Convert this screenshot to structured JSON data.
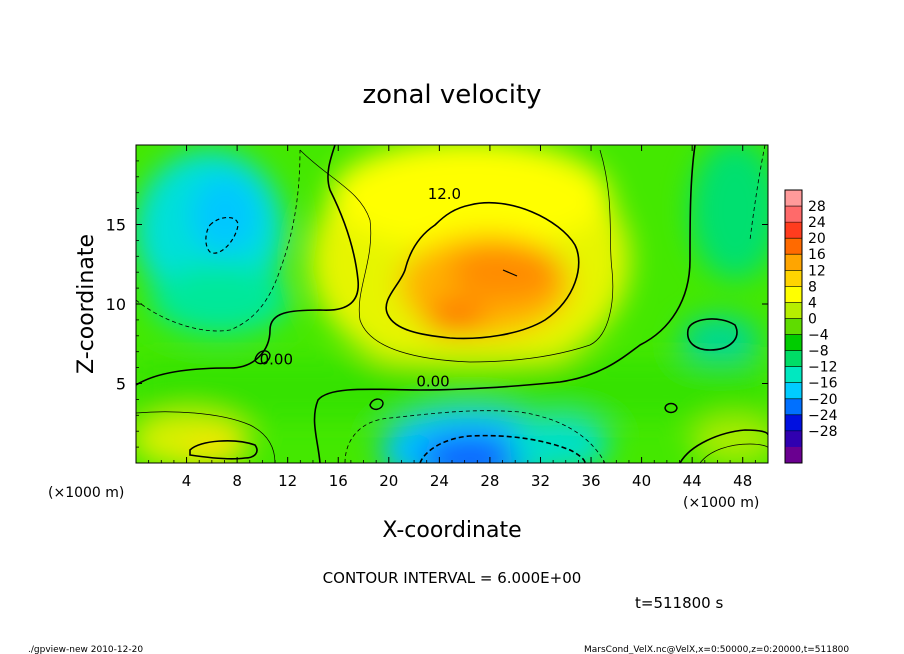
{
  "chart_data": {
    "type": "heatmap",
    "title": "zonal velocity",
    "xlabel": "X-coordinate",
    "ylabel": "Z-coordinate",
    "x_unit": "(×1000 m)",
    "y_unit": "(×1000 m)",
    "xlim": [
      0,
      50
    ],
    "ylim": [
      0,
      20
    ],
    "x_ticks": [
      "4",
      "8",
      "12",
      "16",
      "20",
      "24",
      "28",
      "32",
      "36",
      "40",
      "44",
      "48"
    ],
    "y_ticks": [
      "5",
      "10",
      "15"
    ],
    "colorbar_levels": [
      "28",
      "24",
      "20",
      "16",
      "12",
      "8",
      "4",
      "0",
      "−4",
      "−8",
      "−12",
      "−16",
      "−20",
      "−24",
      "−28"
    ],
    "colorbar_colors": [
      "#ff9a9a",
      "#ff6a6a",
      "#ff3c1e",
      "#ff6a00",
      "#ffa500",
      "#ffd400",
      "#ffff00",
      "#b6ee00",
      "#5fdc00",
      "#00cc00",
      "#00dd66",
      "#00e8c0",
      "#00ccff",
      "#0070ff",
      "#0010e0",
      "#3000b0",
      "#6a0090"
    ],
    "contour_labels": [
      {
        "text": "12.0",
        "x": 24.4,
        "y": 16.6
      },
      {
        "text": "0.00",
        "x": 11.1,
        "y": 6.2
      },
      {
        "text": "0.00",
        "x": 23.5,
        "y": 4.8
      }
    ],
    "annotation_interval": "CONTOUR INTERVAL = 6.000E+00",
    "annotation_time": "t=511800 s"
  },
  "footer": {
    "left": "./gpview-new   2010-12-20",
    "right": "MarsCond_VelX.nc@VelX,x=0:50000,z=0:20000,t=511800"
  }
}
